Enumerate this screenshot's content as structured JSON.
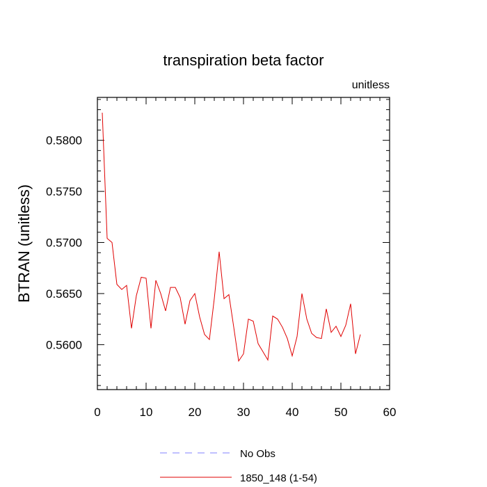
{
  "chart_data": {
    "type": "line",
    "title": "transpiration beta factor",
    "units_label": "unitless",
    "ylabel": "BTRAN  (unitless)",
    "xlabel": "",
    "xlim": [
      0,
      60
    ],
    "ylim": [
      0.5556,
      0.5842
    ],
    "xticks": [
      0,
      10,
      20,
      30,
      40,
      50,
      60
    ],
    "xtick_labels": [
      "0",
      "10",
      "20",
      "30",
      "40",
      "50",
      "60"
    ],
    "yticks": [
      0.56,
      0.565,
      0.57,
      0.575,
      0.58
    ],
    "ytick_labels": [
      "0.5600",
      "0.5650",
      "0.5700",
      "0.5750",
      "0.5800"
    ],
    "grid": false,
    "legend_position": "bottom-center",
    "series": [
      {
        "name": "No Obs",
        "color": "#8080ff",
        "dash": "dashed",
        "x": [],
        "y": []
      },
      {
        "name": "1850_148 (1-54)",
        "color": "#e00000",
        "dash": "solid",
        "x": [
          1,
          2,
          3,
          4,
          5,
          6,
          7,
          8,
          9,
          10,
          11,
          12,
          13,
          14,
          15,
          16,
          17,
          18,
          19,
          20,
          21,
          22,
          23,
          24,
          25,
          26,
          27,
          28,
          29,
          30,
          31,
          32,
          33,
          34,
          35,
          36,
          37,
          38,
          39,
          40,
          41,
          42,
          43,
          44,
          45,
          46,
          47,
          48,
          49,
          50,
          51,
          52,
          53,
          54
        ],
        "y": [
          0.5827,
          0.5704,
          0.57,
          0.5659,
          0.5654,
          0.5658,
          0.5616,
          0.5648,
          0.5666,
          0.5665,
          0.5616,
          0.5663,
          0.565,
          0.5633,
          0.5656,
          0.5656,
          0.5646,
          0.562,
          0.5643,
          0.565,
          0.5627,
          0.561,
          0.5605,
          0.5645,
          0.5691,
          0.5645,
          0.5649,
          0.5617,
          0.5584,
          0.5591,
          0.5625,
          0.5623,
          0.5601,
          0.5593,
          0.5585,
          0.5628,
          0.5625,
          0.5617,
          0.5606,
          0.5589,
          0.5608,
          0.565,
          0.5625,
          0.5611,
          0.5607,
          0.5606,
          0.5635,
          0.5612,
          0.5618,
          0.5608,
          0.5619,
          0.564,
          0.5591,
          0.561
        ]
      }
    ]
  }
}
